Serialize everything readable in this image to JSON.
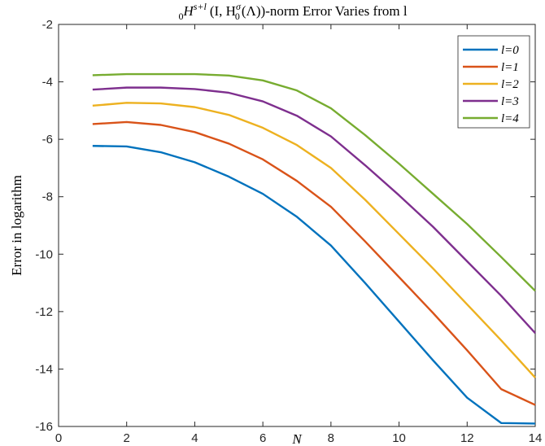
{
  "chart_data": {
    "type": "line",
    "title": "0Hs+l(I,H0σ(Λ))-norm Error Varies from l",
    "title_parts": {
      "sub": "0",
      "base": "H",
      "sup": "s+l",
      "inner_open": "(I, H",
      "inner_sup": "σ",
      "inner_sub": "0",
      "inner_rest": "(Λ))",
      "suffix": "-norm Error Varies from l"
    },
    "xlabel": "N",
    "ylabel": "Error in logarithm",
    "xlim": [
      0,
      14
    ],
    "ylim": [
      -16,
      -2
    ],
    "xticks": [
      0,
      2,
      4,
      6,
      8,
      10,
      12,
      14
    ],
    "xtick_labels": [
      "0",
      "2",
      "4",
      "6",
      "8",
      "10",
      "12",
      "14"
    ],
    "yticks": [
      -2,
      -4,
      -6,
      -8,
      -10,
      -12,
      -14,
      -16
    ],
    "ytick_labels": [
      "-2",
      "-4",
      "-6",
      "-8",
      "-10",
      "-12",
      "-14",
      "-16"
    ],
    "grid": false,
    "legend_position": "top-right",
    "x": [
      1,
      2,
      3,
      4,
      5,
      6,
      7,
      8,
      9,
      10,
      11,
      12,
      13,
      14
    ],
    "series": [
      {
        "name": "l=0",
        "color": "#0072BD",
        "values": [
          -6.23,
          -6.25,
          -6.45,
          -6.8,
          -7.3,
          -7.9,
          -8.7,
          -9.7,
          -11.0,
          -12.35,
          -13.7,
          -15.0,
          -15.88,
          -15.9
        ]
      },
      {
        "name": "l=1",
        "color": "#D95319",
        "values": [
          -5.47,
          -5.4,
          -5.5,
          -5.75,
          -6.15,
          -6.7,
          -7.45,
          -8.35,
          -9.55,
          -10.8,
          -12.05,
          -13.35,
          -14.7,
          -15.25
        ]
      },
      {
        "name": "l=2",
        "color": "#EDB120",
        "values": [
          -4.83,
          -4.73,
          -4.75,
          -4.88,
          -5.15,
          -5.6,
          -6.2,
          -7.0,
          -8.1,
          -9.3,
          -10.5,
          -11.75,
          -13.0,
          -14.3
        ]
      },
      {
        "name": "l=3",
        "color": "#7E2F8E",
        "values": [
          -4.27,
          -4.2,
          -4.2,
          -4.25,
          -4.38,
          -4.68,
          -5.18,
          -5.9,
          -6.9,
          -7.95,
          -9.05,
          -10.25,
          -11.45,
          -12.75
        ]
      },
      {
        "name": "l=4",
        "color": "#77AC30",
        "values": [
          -3.77,
          -3.73,
          -3.73,
          -3.73,
          -3.78,
          -3.95,
          -4.3,
          -4.92,
          -5.85,
          -6.85,
          -7.9,
          -8.95,
          -10.1,
          -11.28
        ]
      }
    ]
  }
}
